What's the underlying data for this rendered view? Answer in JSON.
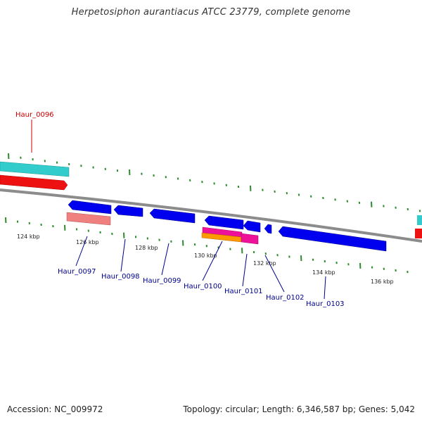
{
  "title": "Herpetosiphon aurantiacus ATCC 23779, complete genome",
  "accession": "Accession: NC_009972",
  "summary": "Topology: circular; Length: 6,346,587 bp; Genes: 5,042",
  "colors": {
    "backbone": "#8c8c8c",
    "tick": "#2e8b2e",
    "forward_label": "#cc0000",
    "reverse_label": "#00008b",
    "cyan": "#33cccc",
    "red": "#ee1111",
    "blue": "#0000ee",
    "salmon": "#f08080",
    "magenta": "#ee1199",
    "orange": "#ff9900"
  },
  "kbp_labels": [
    "124 kbp",
    "126 kbp",
    "128 kbp",
    "130 kbp",
    "132 kbp",
    "134 kbp",
    "136 kbp"
  ],
  "gene_labels": {
    "haur_0096": "Haur_0096",
    "haur_0097": "Haur_0097",
    "haur_0098": "Haur_0098",
    "haur_0099": "Haur_0099",
    "haur_0100": "Haur_0100",
    "haur_0101": "Haur_0101",
    "haur_0102": "Haur_0102",
    "haur_0103": "Haur_0103"
  }
}
